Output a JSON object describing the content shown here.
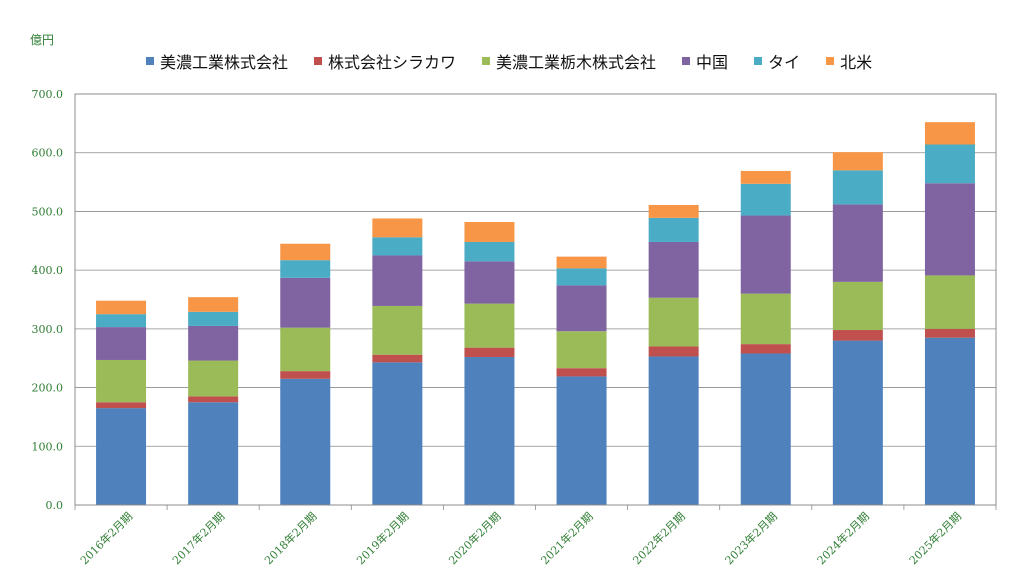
{
  "chart_data": {
    "type": "bar",
    "stacked": true,
    "unit_label": "億円",
    "categories": [
      "2016年2月期",
      "2017年2月期",
      "2018年2月期",
      "2019年2月期",
      "2020年2月期",
      "2021年2月期",
      "2022年2月期",
      "2023年2月期",
      "2024年2月期",
      "2025年2月期"
    ],
    "series": [
      {
        "name": "美濃工業株式会社",
        "color": "#4f81bd",
        "values": [
          165,
          175,
          215,
          243,
          252,
          219,
          253,
          258,
          280,
          285
        ]
      },
      {
        "name": "株式会社シラカワ",
        "color": "#c0504d",
        "values": [
          10,
          10,
          13,
          13,
          16,
          14,
          17,
          16,
          18,
          15
        ]
      },
      {
        "name": "美濃工業栃木株式会社",
        "color": "#9bbb59",
        "values": [
          72,
          61,
          74,
          83,
          75,
          63,
          83,
          86,
          82,
          91
        ]
      },
      {
        "name": "中国",
        "color": "#8064a2",
        "values": [
          56,
          59,
          85,
          86,
          72,
          78,
          95,
          133,
          132,
          157
        ]
      },
      {
        "name": "タイ",
        "color": "#4bacc6",
        "values": [
          22,
          24,
          30,
          31,
          33,
          29,
          41,
          54,
          58,
          66
        ]
      },
      {
        "name": "北米",
        "color": "#f79646",
        "values": [
          23,
          25,
          28,
          32,
          34,
          20,
          22,
          22,
          31,
          38
        ]
      }
    ],
    "ylim": [
      0,
      700
    ],
    "yticks": [
      0,
      100,
      200,
      300,
      400,
      500,
      600,
      700
    ],
    "ytick_labels": [
      "0.0",
      "100.0",
      "200.0",
      "300.0",
      "400.0",
      "500.0",
      "600.0",
      "700.0"
    ],
    "grid": true,
    "legend_position": "top",
    "tick_label_color": "#2e7d32",
    "grid_color": "#8c8c8c"
  }
}
